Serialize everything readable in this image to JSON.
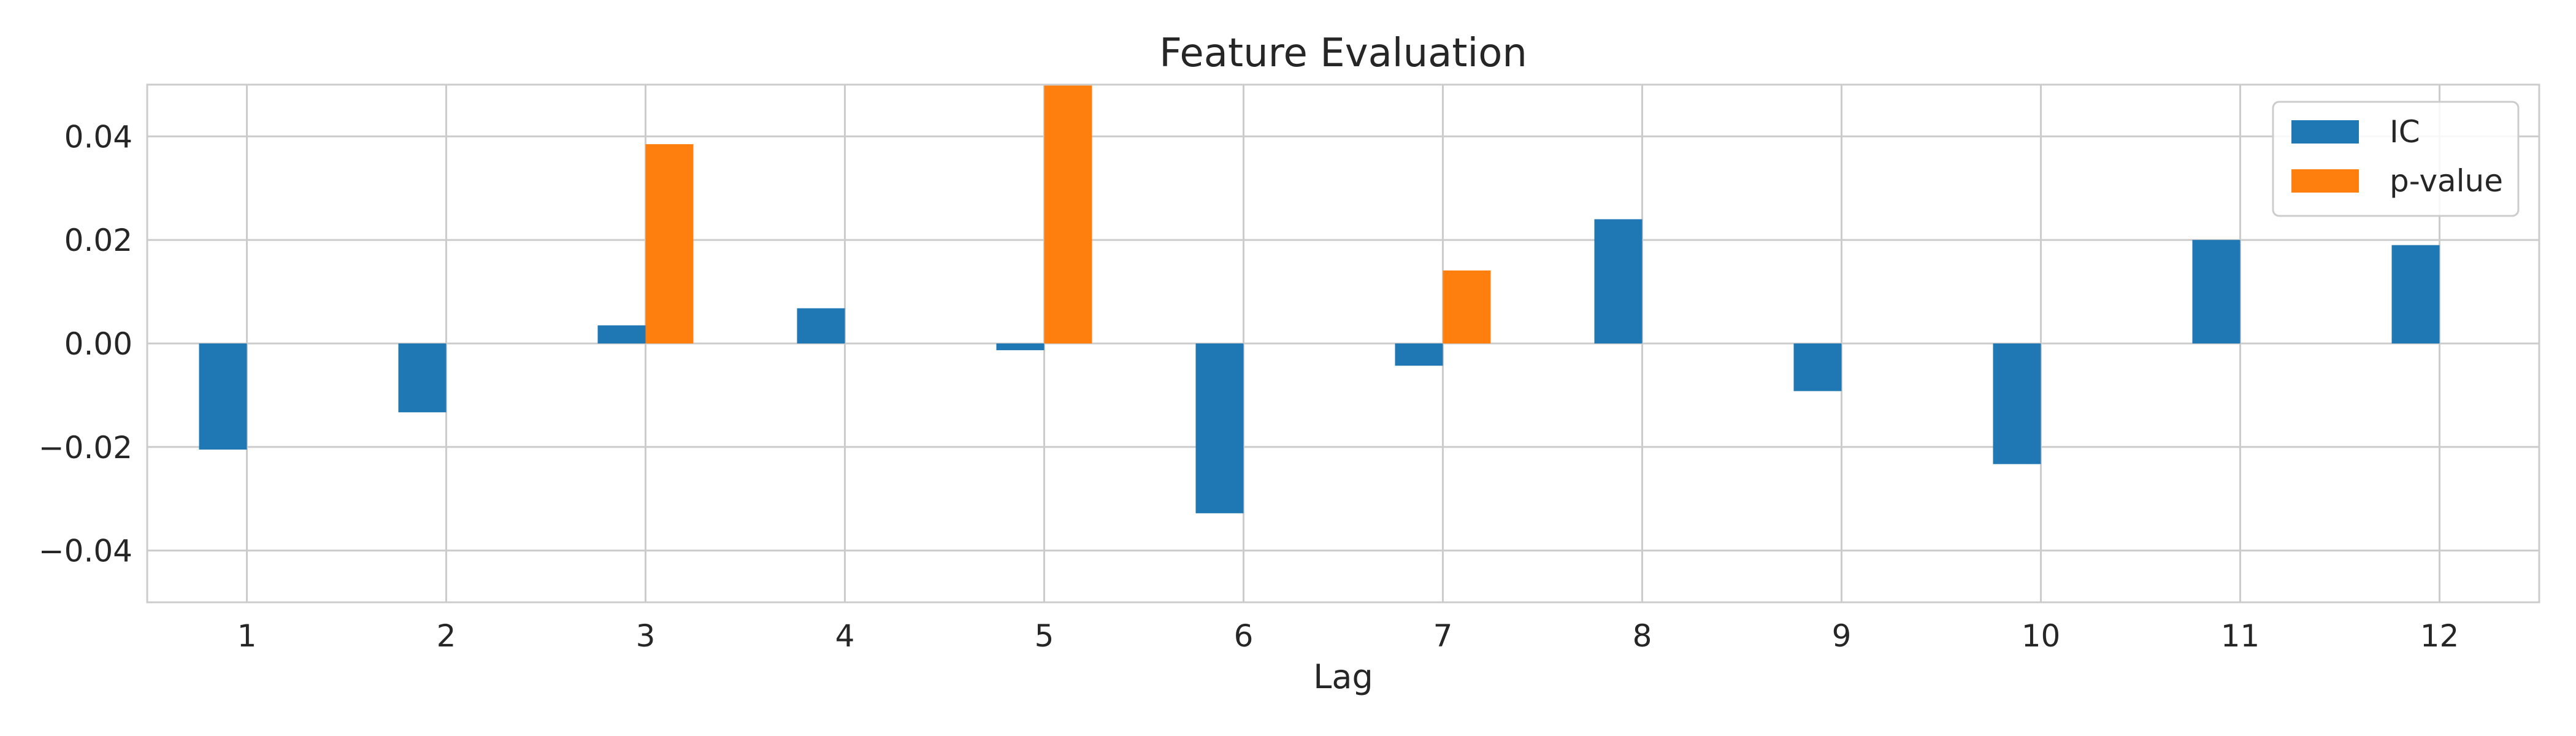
{
  "chart_data": {
    "type": "bar",
    "title": "Feature Evaluation",
    "xlabel": "Lag",
    "ylabel": "",
    "categories": [
      "1",
      "2",
      "3",
      "4",
      "5",
      "6",
      "7",
      "8",
      "9",
      "10",
      "11",
      "12"
    ],
    "series": [
      {
        "name": "IC",
        "color": "#1f77b4",
        "values": [
          -0.0205,
          -0.0133,
          0.0035,
          0.0068,
          -0.0013,
          -0.0328,
          -0.0043,
          0.024,
          -0.0092,
          -0.0233,
          0.02,
          0.019
        ]
      },
      {
        "name": "p-value",
        "color": "#ff7f0e",
        "values": [
          0.0,
          0.0,
          0.0385,
          0.0,
          0.05,
          0.0,
          0.0141,
          0.0,
          0.0,
          0.0,
          0.0,
          0.0
        ]
      }
    ],
    "ylim": [
      -0.05,
      0.05
    ],
    "yticks": [
      -0.04,
      -0.02,
      0.0,
      0.02,
      0.04
    ],
    "ytick_labels": [
      "−0.04",
      "−0.02",
      "0.00",
      "0.02",
      "0.04"
    ],
    "grid": true,
    "legend_position": "top-right"
  }
}
